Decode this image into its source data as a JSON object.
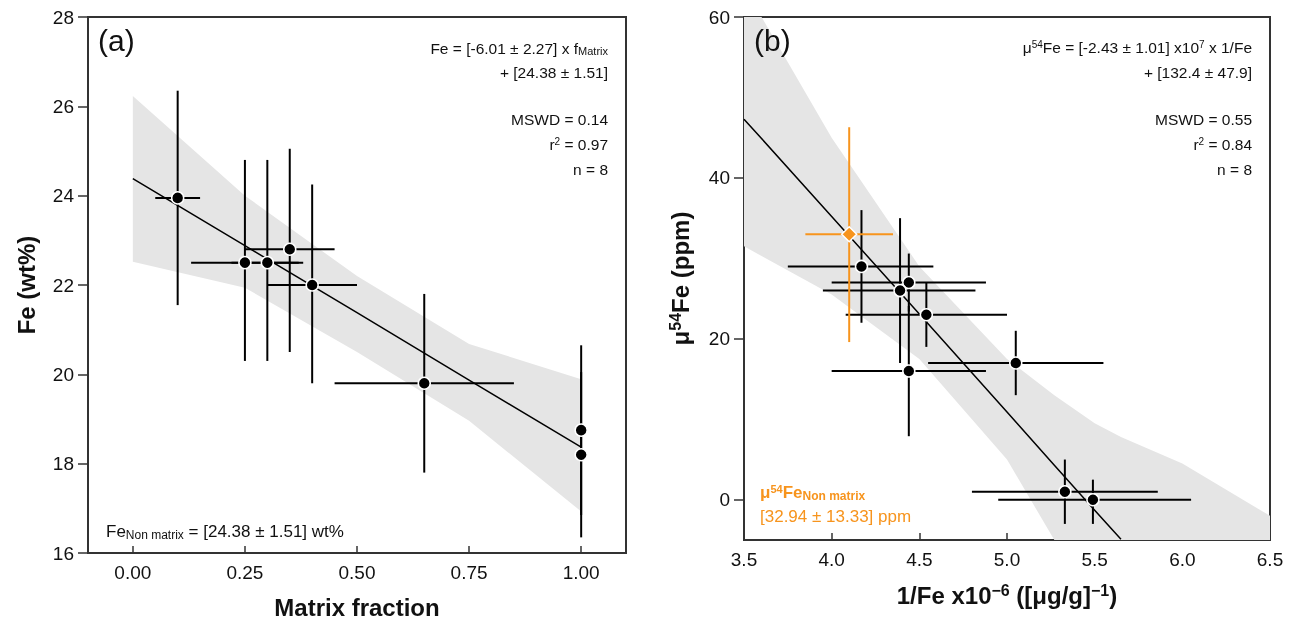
{
  "chart_data": [
    {
      "type": "scatter",
      "title": "(a)",
      "xlabel": "Matrix fraction",
      "ylabel": "Fe (wt%)",
      "xlim": [
        -0.1,
        1.1
      ],
      "xticks": [
        {
          "value": 0,
          "label": "0.00"
        },
        {
          "value": 0.25,
          "label": "0.25"
        },
        {
          "value": 0.5,
          "label": "0.50"
        },
        {
          "value": 0.75,
          "label": "0.75"
        },
        {
          "value": 1,
          "label": "1.00"
        }
      ],
      "ylim": [
        16,
        28
      ],
      "yticks": [
        16,
        18,
        20,
        22,
        24,
        26,
        28
      ],
      "grid": false,
      "legend": false,
      "marker": "circle",
      "annotations": [
        "Fe = [-6.01 ± 2.27] x f$_{Matrix}$",
        "+ [24.38 ± 1.51]",
        "MSWD = 0.14",
        "r$^{2}$ = 0.97",
        "n = 8",
        "Fe$_{Non matrix}$ = [24.38 ± 1.51] wt%"
      ],
      "series": [
        {
          "type": "line",
          "color": "#000000",
          "marker": "none",
          "x": [
            0,
            0.25,
            0.5,
            0.75,
            1
          ],
          "values": [
            24.38,
            22.88,
            21.38,
            19.87,
            18.37
          ],
          "lower": [
            22.52,
            21.94,
            20.5,
            18.96,
            16.93
          ],
          "upper": [
            26.23,
            24.0,
            22.2,
            20.68,
            19.89
          ]
        },
        {
          "type": "scatter",
          "color": "#000000",
          "x": [
            0.1,
            0.25,
            0.3,
            0.35,
            0.4,
            0.65,
            1.0,
            1.0
          ],
          "values": [
            23.95,
            22.5,
            22.5,
            22.8,
            22.0,
            19.8,
            18.75,
            18.2
          ],
          "errors": [
            [
              21.55,
              26.35
            ],
            [
              20.3,
              24.8
            ],
            [
              20.3,
              24.8
            ],
            [
              20.5,
              25.05
            ],
            [
              19.8,
              24.25
            ],
            [
              17.8,
              21.8
            ],
            [
              16.85,
              20.65
            ],
            [
              16.35,
              20.05
            ]
          ],
          "xerrors": [
            [
              0.05,
              0.15
            ],
            [
              0.13,
              0.37
            ],
            [
              0.22,
              0.38
            ],
            [
              0.25,
              0.45
            ],
            [
              0.3,
              0.5
            ],
            [
              0.45,
              0.85
            ],
            null,
            null
          ]
        }
      ]
    },
    {
      "type": "scatter",
      "title": "(b)",
      "xlabel": "1/Fe x10$^{−6}$ ([μg/g]$^{−1}$)",
      "ylabel": "μ$^{54}$Fe (ppm)",
      "xlim": [
        3.5,
        6.5
      ],
      "xticks": [
        3.5,
        {
          "value": 4,
          "label": "4.0"
        },
        4.5,
        {
          "value": 5,
          "label": "5.0"
        },
        5.5,
        {
          "value": 6,
          "label": "6.0"
        },
        6.5
      ],
      "ylim": [
        -5,
        60
      ],
      "yticks": [
        0,
        20,
        40,
        60
      ],
      "grid": false,
      "legend": "bottom left",
      "marker": "circle",
      "annotations": [
        "μ$^{54}$Fe = [-2.43 ± 1.01] x10$^{7}$ x 1/Fe",
        "+ [132.4 ± 47.9]",
        "MSWD = 0.55",
        "r$^{2}$ = 0.84",
        "n = 8",
        "[32.94 ± 13.33] ppm"
      ],
      "series": [
        {
          "type": "line",
          "color": "#000000",
          "marker": "none",
          "x": [
            3.5,
            3.6,
            4.0,
            4.5,
            5.0,
            5.27,
            5.5,
            5.65,
            6.0,
            6.5
          ],
          "values": [
            47.3,
            44.9,
            35.2,
            23.1,
            10.9,
            4.3,
            -1.3,
            -4.9,
            null,
            null
          ],
          "lower": [
            31.5,
            30.3,
            25.5,
            17.5,
            5,
            -5,
            -5,
            -5,
            -5,
            -5
          ],
          "upper": [
            60,
            60,
            45,
            29,
            17.5,
            13,
            9.5,
            7.8,
            4.5,
            -2
          ]
        },
        {
          "type": "scatter",
          "color": "#000000",
          "x": [
            4.17,
            4.44,
            4.39,
            4.54,
            4.44,
            5.05,
            5.33,
            5.49
          ],
          "values": [
            29,
            27,
            26,
            23,
            16,
            17,
            1,
            0
          ],
          "errors": [
            [
              22,
              36
            ],
            [
              23.4,
              30.6
            ],
            [
              17,
              35
            ],
            [
              19,
              27
            ],
            [
              7.9,
              24.1
            ],
            [
              13,
              21
            ],
            [
              -3,
              5
            ],
            [
              -3,
              2.5
            ]
          ],
          "xerrors": [
            [
              3.75,
              4.58
            ],
            [
              4.0,
              4.88
            ],
            [
              3.95,
              4.82
            ],
            [
              4.08,
              5.0
            ],
            [
              4.0,
              4.88
            ],
            [
              4.55,
              5.55
            ],
            [
              4.8,
              5.86
            ],
            [
              4.95,
              6.05
            ]
          ]
        },
        {
          "type": "scatter",
          "name": "μ$^{54}$Fe$_{Non matrix}$",
          "color": "#f7941d",
          "marker": "diamond",
          "x": [
            4.1
          ],
          "values": [
            33
          ],
          "errors": [
            [
              19.6,
              46.3
            ]
          ],
          "xerrors": [
            [
              3.85,
              4.35
            ]
          ]
        }
      ]
    }
  ]
}
